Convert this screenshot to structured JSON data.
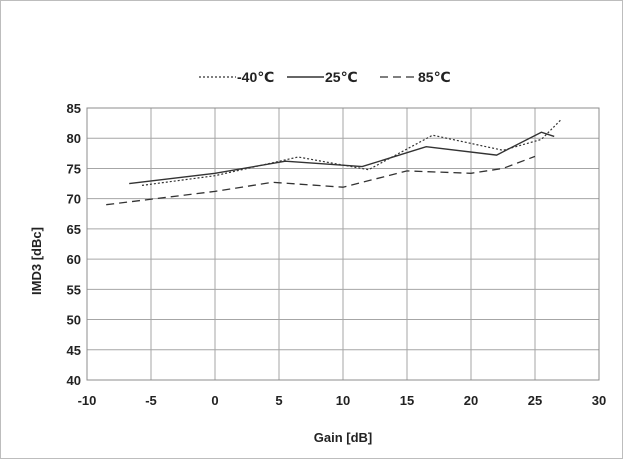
{
  "chart_data": {
    "type": "line",
    "xlabel": "Gain [dB]",
    "ylabel": "IMD3 [dBc]",
    "xlim": [
      -10,
      30
    ],
    "ylim": [
      40,
      85
    ],
    "xticks": [
      -10,
      -5,
      0,
      5,
      10,
      15,
      20,
      25,
      30
    ],
    "yticks": [
      40,
      45,
      50,
      55,
      60,
      65,
      70,
      75,
      80,
      85
    ],
    "grid": true,
    "legend_position": "top",
    "series": [
      {
        "name": "-40℃",
        "style": "dotted",
        "color": "#333333",
        "points": [
          [
            -5.7,
            72.2
          ],
          [
            0,
            73.8
          ],
          [
            6.5,
            76.9
          ],
          [
            12,
            74.8
          ],
          [
            17,
            80.5
          ],
          [
            22.5,
            78.0
          ],
          [
            25.5,
            79.8
          ],
          [
            27,
            83.0
          ]
        ]
      },
      {
        "name": "25℃",
        "style": "solid",
        "color": "#333333",
        "points": [
          [
            -6.7,
            72.5
          ],
          [
            0,
            74.2
          ],
          [
            5.5,
            76.2
          ],
          [
            11.5,
            75.3
          ],
          [
            16.5,
            78.6
          ],
          [
            22,
            77.2
          ],
          [
            25.5,
            81.0
          ],
          [
            26.5,
            80.3
          ]
        ]
      },
      {
        "name": "85℃",
        "style": "dashed",
        "color": "#333333",
        "points": [
          [
            -8.5,
            69.0
          ],
          [
            0,
            71.2
          ],
          [
            4.5,
            72.7
          ],
          [
            10,
            71.9
          ],
          [
            15,
            74.6
          ],
          [
            20,
            74.2
          ],
          [
            22.5,
            75.0
          ],
          [
            25,
            77.0
          ]
        ]
      }
    ]
  }
}
